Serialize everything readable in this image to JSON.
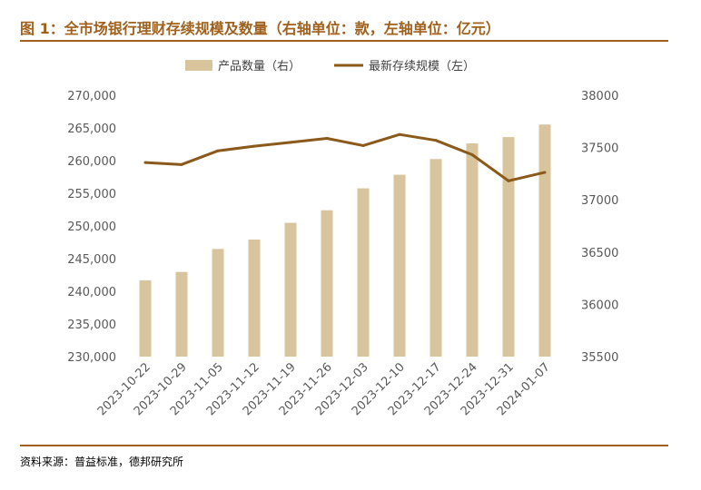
{
  "title": "图 1：全市场银行理财存续规模及数量（右轴单位：款，左轴单位：亿元）",
  "source": "资料来源：普益标准，德邦研究所",
  "colors": {
    "accent": "#a0611c",
    "bar": "#d8c49d",
    "line": "#8b5a1a",
    "axis_text": "#595959"
  },
  "chart_data": {
    "type": "bar",
    "categories": [
      "2023-10-22",
      "2023-10-29",
      "2023-11-05",
      "2023-11-12",
      "2023-11-19",
      "2023-11-26",
      "2023-12-03",
      "2023-12-10",
      "2023-12-17",
      "2023-12-24",
      "2023-12-31",
      "2024-01-07"
    ],
    "left_axis": {
      "min": 230000,
      "max": 270000,
      "ticks": [
        "230,000",
        "235,000",
        "240,000",
        "245,000",
        "250,000",
        "255,000",
        "260,000",
        "265,000",
        "270,000"
      ]
    },
    "right_axis": {
      "min": 35500,
      "max": 38000,
      "ticks": [
        "35500",
        "36000",
        "36500",
        "37000",
        "37500",
        "38000"
      ]
    },
    "series": [
      {
        "name": "产品数量（右）",
        "type": "bar",
        "axis": "right",
        "values": [
          36230,
          36310,
          36530,
          36620,
          36780,
          36900,
          37110,
          37240,
          37390,
          37540,
          37600,
          37720
        ]
      },
      {
        "name": "最新存续规模（左）",
        "type": "line",
        "axis": "left",
        "values": [
          259700,
          259400,
          261500,
          262200,
          262800,
          263400,
          262300,
          264000,
          263100,
          260900,
          256900,
          258200
        ]
      }
    ],
    "legend_position": "top",
    "grid": false
  }
}
